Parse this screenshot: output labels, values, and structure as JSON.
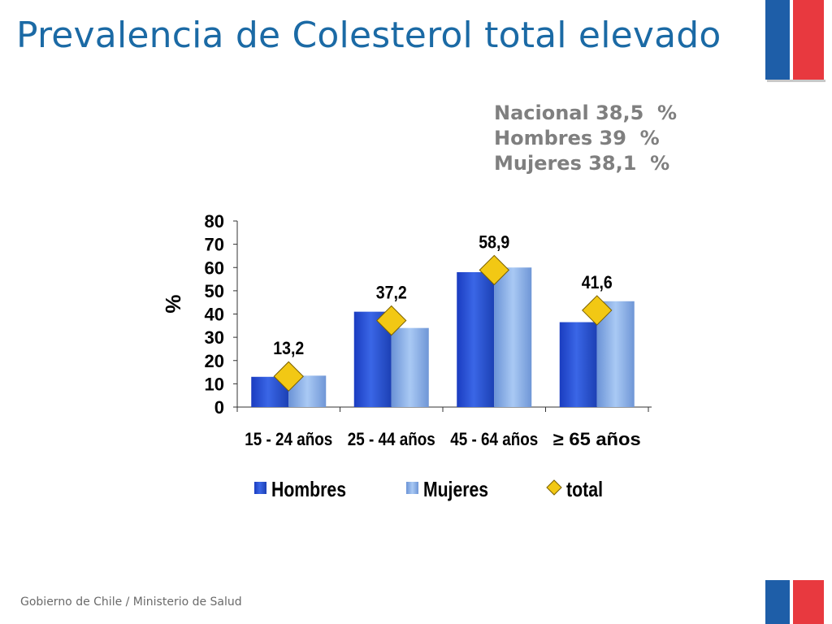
{
  "slide": {
    "title": "Prevalencia de Colesterol total elevado",
    "summary": [
      "Nacional 38,5  %",
      "Hombres 39  %",
      "Mujeres 38,1  %"
    ],
    "footer": "Gobierno de Chile / Ministerio de Salud"
  },
  "colors": {
    "title": "#1b6aa5",
    "summary": "#7f7f7f",
    "hombres": "#2a4fd0",
    "mujeres": "#8fb4ea",
    "total": "#f2c814",
    "flag_blue": "#1e5ea8",
    "flag_red": "#e8393f"
  },
  "chart_data": {
    "type": "bar",
    "ylabel": "%",
    "ylim": [
      0,
      80
    ],
    "yticks": [
      0,
      10,
      20,
      30,
      40,
      50,
      60,
      70,
      80
    ],
    "categories": [
      "15 - 24 años",
      "25 - 44 años",
      "45 - 64 años",
      "≥ 65 años"
    ],
    "series": [
      {
        "name": "Hombres",
        "kind": "bar",
        "values": [
          13,
          41,
          58,
          36.5
        ]
      },
      {
        "name": "Mujeres",
        "kind": "bar",
        "values": [
          13.5,
          34,
          60,
          45.5
        ]
      },
      {
        "name": "total",
        "kind": "marker",
        "marker": "diamond",
        "values": [
          13.2,
          37.2,
          58.9,
          41.6
        ],
        "labels": [
          "13,2",
          "37,2",
          "58,9",
          "41,6"
        ]
      }
    ],
    "legend": "bottom",
    "grid": false
  }
}
